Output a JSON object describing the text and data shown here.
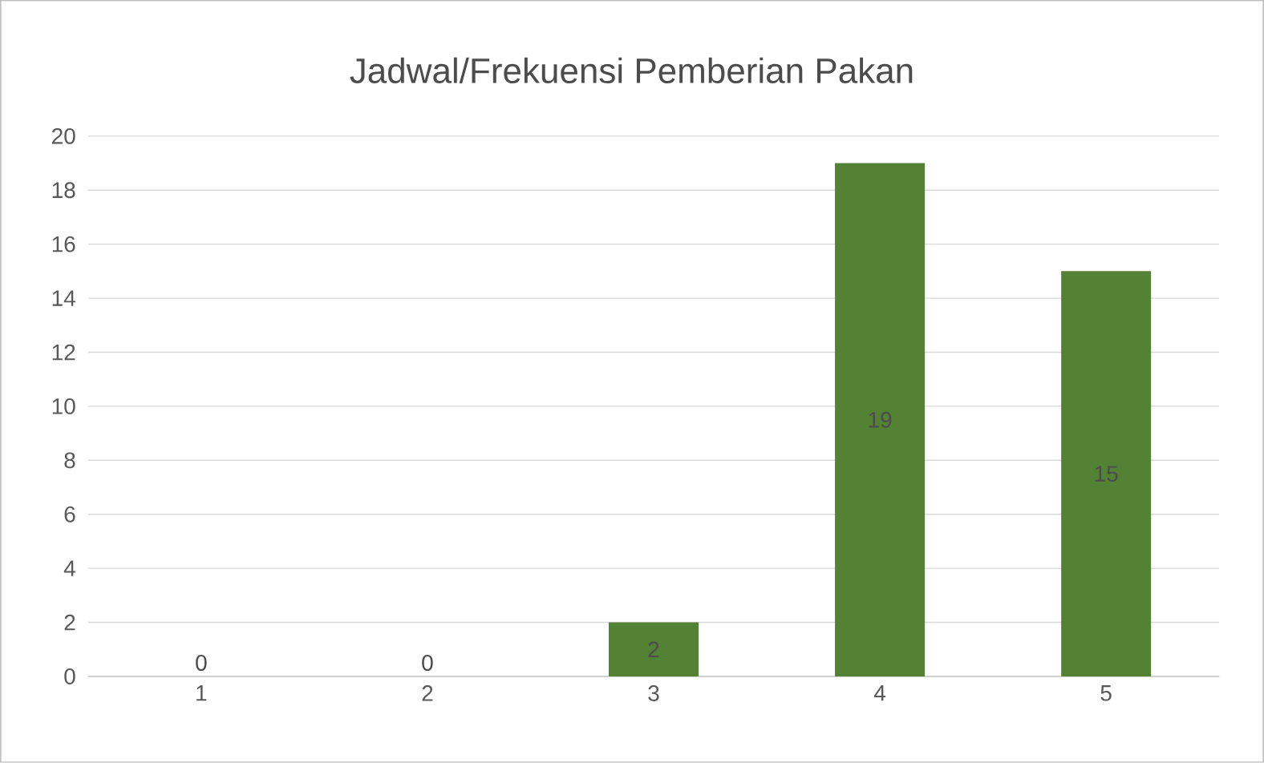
{
  "chart_data": {
    "type": "bar",
    "title": "Jadwal/Frekuensi Pemberian Pakan",
    "categories": [
      "1",
      "2",
      "3",
      "4",
      "5"
    ],
    "values": [
      0,
      0,
      2,
      19,
      15
    ],
    "color": "#548235",
    "ylim": [
      0,
      20
    ],
    "yticks": [
      0,
      2,
      4,
      6,
      8,
      10,
      12,
      14,
      16,
      18,
      20
    ],
    "grid": "y",
    "data_labels": true
  }
}
